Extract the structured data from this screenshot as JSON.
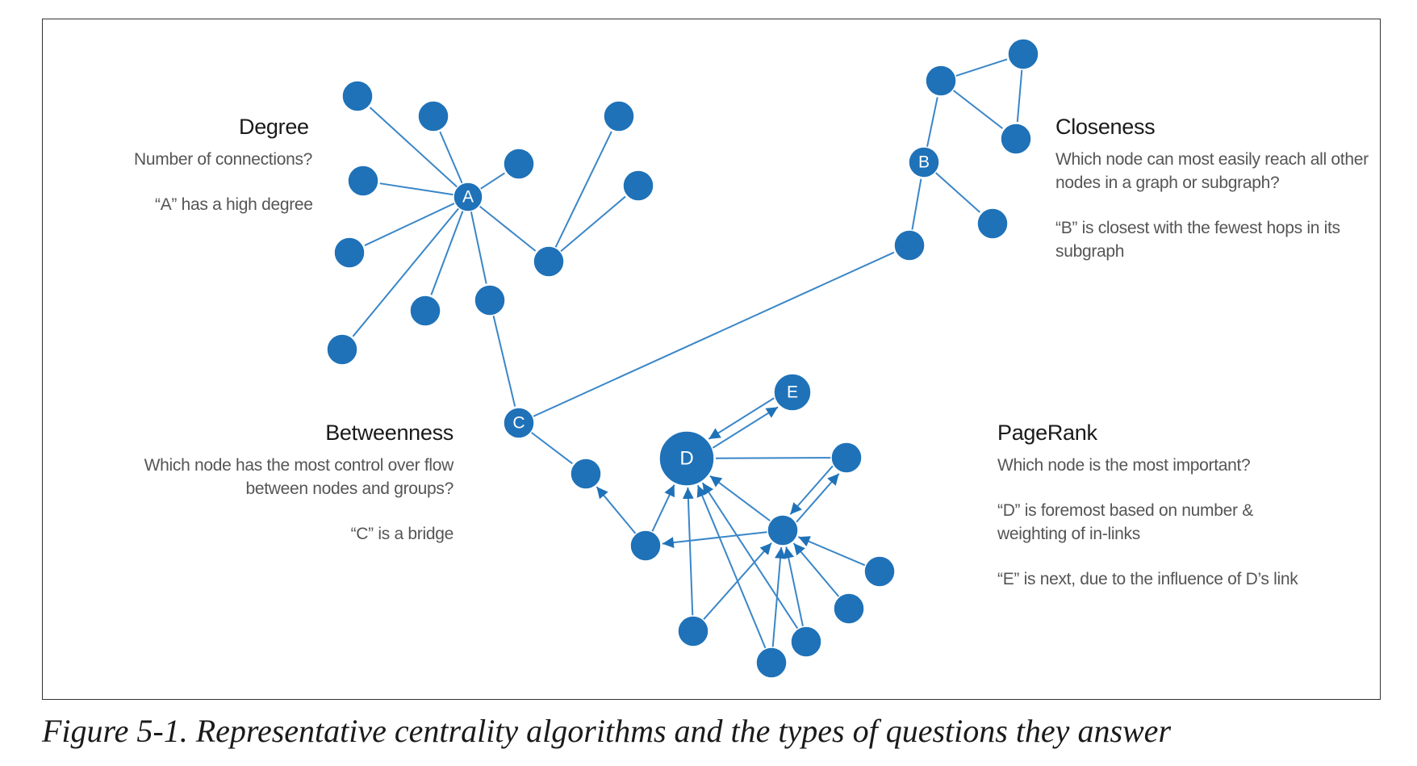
{
  "colors": {
    "node": "#1f72b8",
    "edge": "#3a86c8",
    "title": "#1a1a1a",
    "body": "#555555"
  },
  "panels": {
    "degree": {
      "title": "Degree",
      "question": "Number of connections?",
      "note": "“A” has a high degree"
    },
    "closeness": {
      "title": "Closeness",
      "question_line1": "Which node can most easily reach all other",
      "question_line2": "nodes in a graph or subgraph?",
      "note_line1": "“B” is closest with the fewest hops in its",
      "note_line2": "subgraph"
    },
    "betweenness": {
      "title": "Betweenness",
      "question_line1": "Which node has the most control over flow",
      "question_line2": "between nodes and groups?",
      "note": "“C”  is  a bridge"
    },
    "pagerank": {
      "title": "PageRank",
      "question": "Which node is the most important?",
      "note1_line1": "“D” is foremost based on number &",
      "note1_line2": "weighting of in-links",
      "note2": "“E” is next, due to the influence of D’s link"
    }
  },
  "graph": {
    "nodes": [
      {
        "id": "A",
        "label": "A"
      },
      {
        "id": "a1",
        "label": ""
      },
      {
        "id": "a2",
        "label": ""
      },
      {
        "id": "a3",
        "label": ""
      },
      {
        "id": "a4",
        "label": ""
      },
      {
        "id": "a5",
        "label": ""
      },
      {
        "id": "a6",
        "label": ""
      },
      {
        "id": "a7",
        "label": ""
      },
      {
        "id": "a8",
        "label": ""
      },
      {
        "id": "a9",
        "label": ""
      },
      {
        "id": "a10",
        "label": ""
      },
      {
        "id": "a11",
        "label": ""
      },
      {
        "id": "B",
        "label": "B"
      },
      {
        "id": "b1",
        "label": ""
      },
      {
        "id": "b2",
        "label": ""
      },
      {
        "id": "b3",
        "label": ""
      },
      {
        "id": "b4",
        "label": ""
      },
      {
        "id": "b5",
        "label": ""
      },
      {
        "id": "C",
        "label": "C"
      },
      {
        "id": "c1",
        "label": ""
      },
      {
        "id": "D",
        "label": "D"
      },
      {
        "id": "E",
        "label": "E"
      },
      {
        "id": "d1",
        "label": ""
      },
      {
        "id": "d2",
        "label": ""
      },
      {
        "id": "d3",
        "label": ""
      },
      {
        "id": "d4",
        "label": ""
      },
      {
        "id": "d5",
        "label": ""
      },
      {
        "id": "d6",
        "label": ""
      },
      {
        "id": "d7",
        "label": ""
      },
      {
        "id": "d8",
        "label": ""
      }
    ],
    "edges": [
      {
        "from": "A",
        "to": "a1",
        "directed": false
      },
      {
        "from": "A",
        "to": "a2",
        "directed": false
      },
      {
        "from": "A",
        "to": "a3",
        "directed": false
      },
      {
        "from": "A",
        "to": "a4",
        "directed": false
      },
      {
        "from": "A",
        "to": "a5",
        "directed": false
      },
      {
        "from": "A",
        "to": "a6",
        "directed": false
      },
      {
        "from": "A",
        "to": "a7",
        "directed": false
      },
      {
        "from": "A",
        "to": "a8",
        "directed": false
      },
      {
        "from": "A",
        "to": "a9",
        "directed": false
      },
      {
        "from": "a9",
        "to": "a10",
        "directed": false
      },
      {
        "from": "a9",
        "to": "a11",
        "directed": false
      },
      {
        "from": "a8",
        "to": "C",
        "directed": false
      },
      {
        "from": "C",
        "to": "b5",
        "directed": false
      },
      {
        "from": "b5",
        "to": "B",
        "directed": false
      },
      {
        "from": "B",
        "to": "b1",
        "directed": false
      },
      {
        "from": "B",
        "to": "b4",
        "directed": false
      },
      {
        "from": "b1",
        "to": "b2",
        "directed": false
      },
      {
        "from": "b1",
        "to": "b3",
        "directed": false
      },
      {
        "from": "b2",
        "to": "b3",
        "directed": false
      },
      {
        "from": "C",
        "to": "c1",
        "directed": false
      },
      {
        "from": "d1",
        "to": "c1",
        "directed": true
      },
      {
        "from": "d1",
        "to": "D",
        "directed": true
      },
      {
        "from": "d2",
        "to": "d1",
        "directed": true
      },
      {
        "from": "D",
        "to": "E",
        "directed": true
      },
      {
        "from": "E",
        "to": "D",
        "directed": true
      },
      {
        "from": "d3",
        "to": "D",
        "directed": false
      },
      {
        "from": "d2",
        "to": "D",
        "directed": true
      },
      {
        "from": "d2",
        "to": "d3",
        "directed": true
      },
      {
        "from": "d3",
        "to": "d2",
        "directed": true
      },
      {
        "from": "d4",
        "to": "D",
        "directed": true
      },
      {
        "from": "d4",
        "to": "d2",
        "directed": true
      },
      {
        "from": "d5",
        "to": "D",
        "directed": true
      },
      {
        "from": "d5",
        "to": "d2",
        "directed": true
      },
      {
        "from": "d6",
        "to": "D",
        "directed": true
      },
      {
        "from": "d6",
        "to": "d2",
        "directed": true
      },
      {
        "from": "d7",
        "to": "d2",
        "directed": true
      },
      {
        "from": "d8",
        "to": "d2",
        "directed": true
      }
    ]
  },
  "caption": "Figure 5-1. Representative centrality algorithms and the types of questions they answer"
}
